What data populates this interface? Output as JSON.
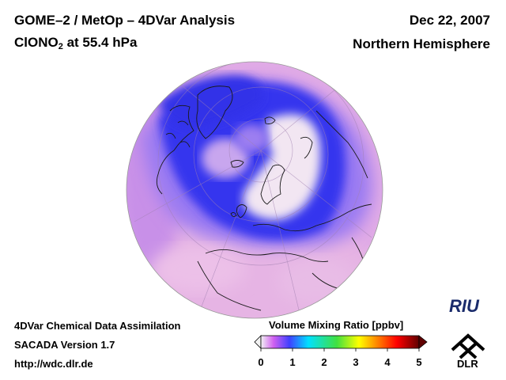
{
  "header": {
    "title_line1": "GOME–2 / MetOp – 4DVar Analysis",
    "species": "ClONO",
    "species_subscript": "2",
    "pressure_text": " at 55.4 hPa",
    "date": "Dec 22, 2007",
    "region": "Northern Hemisphere"
  },
  "footer": {
    "line1": "4DVar Chemical Data Assimilation",
    "line2": "SACADA Version 1.7",
    "line3": "http://wdc.dlr.de"
  },
  "colorbar": {
    "title": "Volume Mixing Ratio [ppbv]",
    "ticks": [
      "0",
      "1",
      "2",
      "3",
      "4",
      "5"
    ],
    "stops": [
      "#f2f2f2",
      "#d060f0",
      "#4040ff",
      "#00e0ff",
      "#40e040",
      "#ffff00",
      "#ff8000",
      "#ff0000",
      "#600000"
    ]
  },
  "logos": {
    "riu": "RIU",
    "dlr": "DLR"
  },
  "map_colors": {
    "background": "#d9a0e0",
    "low": "#3b3bef",
    "mid": "#8a6af0",
    "high": "#f4eaf2",
    "coast": "#1a1a1a"
  }
}
